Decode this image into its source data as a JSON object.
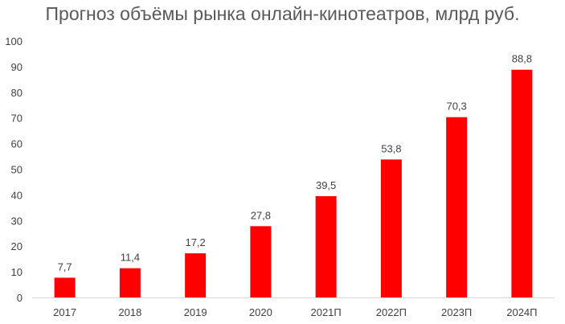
{
  "chart_data": {
    "type": "bar",
    "title": "Прогноз объёмы рынка онлайн-кинотеатров, млрд руб.",
    "xlabel": "",
    "ylabel": "",
    "categories": [
      "2017",
      "2018",
      "2019",
      "2020",
      "2021П",
      "2022П",
      "2023П",
      "2024П"
    ],
    "values": [
      7.7,
      11.4,
      17.2,
      27.8,
      39.5,
      53.8,
      70.3,
      88.8
    ],
    "value_labels": [
      "7,7",
      "11,4",
      "17,2",
      "27,8",
      "39,5",
      "53,8",
      "70,3",
      "88,8"
    ],
    "ylim": [
      0,
      100
    ],
    "yticks": [
      0,
      10,
      20,
      30,
      40,
      50,
      60,
      70,
      80,
      90,
      100
    ],
    "grid": false,
    "legend": "none",
    "bar_color": "#ff0000"
  }
}
